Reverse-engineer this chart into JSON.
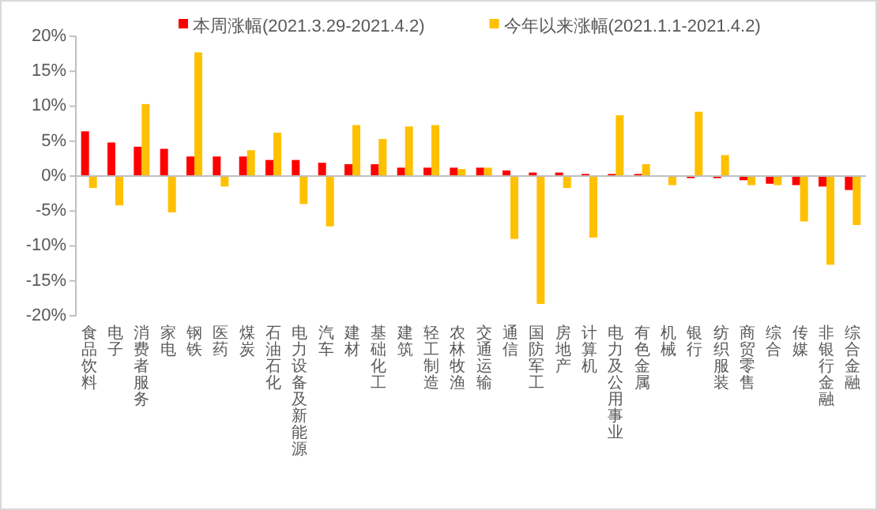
{
  "chart_data": {
    "type": "bar",
    "legend": "top",
    "categories": [
      "食品饮料",
      "电子",
      "消费者服务",
      "家电",
      "钢铁",
      "医药",
      "煤炭",
      "石油石化",
      "电力设备及新能源",
      "汽车",
      "建材",
      "基础化工",
      "建筑",
      "轻工制造",
      "农林牧渔",
      "交通运输",
      "通信",
      "国防军工",
      "房地产",
      "计算机",
      "电力及公用事业",
      "有色金属",
      "机械",
      "银行",
      "纺织服装",
      "商贸零售",
      "综合",
      "传媒",
      "非银行金融",
      "综合金融"
    ],
    "series": [
      {
        "name": "本周涨幅(2021.3.29-2021.4.2)",
        "color": "#ff0000",
        "values": [
          6.4,
          4.8,
          4.2,
          3.9,
          2.8,
          2.8,
          2.8,
          2.3,
          2.3,
          1.9,
          1.7,
          1.7,
          1.2,
          1.2,
          1.2,
          1.2,
          0.8,
          0.5,
          0.5,
          0.3,
          0.3,
          0.3,
          0,
          -0.3,
          -0.3,
          -0.6,
          -1.1,
          -1.3,
          -1.5,
          -2.0
        ]
      },
      {
        "name": "今年以来涨幅(2021.1.1-2021.4.2)",
        "color": "#ffc000",
        "values": [
          -1.7,
          -4.2,
          10.3,
          -5.2,
          17.7,
          -1.5,
          3.7,
          6.2,
          -4.0,
          -7.2,
          7.3,
          5.3,
          7.1,
          7.3,
          1.0,
          1.2,
          -9.0,
          -18.3,
          -1.7,
          -8.8,
          8.7,
          1.7,
          -1.3,
          9.2,
          3.0,
          -1.3,
          -1.3,
          -6.5,
          -12.7,
          -7.0
        ]
      }
    ],
    "ylim": [
      -20,
      20
    ],
    "yticks": [
      {
        "value": -20,
        "label": "-20%"
      },
      {
        "value": -15,
        "label": "-15%"
      },
      {
        "value": -10,
        "label": "-10%"
      },
      {
        "value": -5,
        "label": "-5%"
      },
      {
        "value": 0,
        "label": "0%"
      },
      {
        "value": 5,
        "label": "5%"
      },
      {
        "value": 10,
        "label": "10%"
      },
      {
        "value": 15,
        "label": "15%"
      },
      {
        "value": 20,
        "label": "20%"
      }
    ]
  }
}
